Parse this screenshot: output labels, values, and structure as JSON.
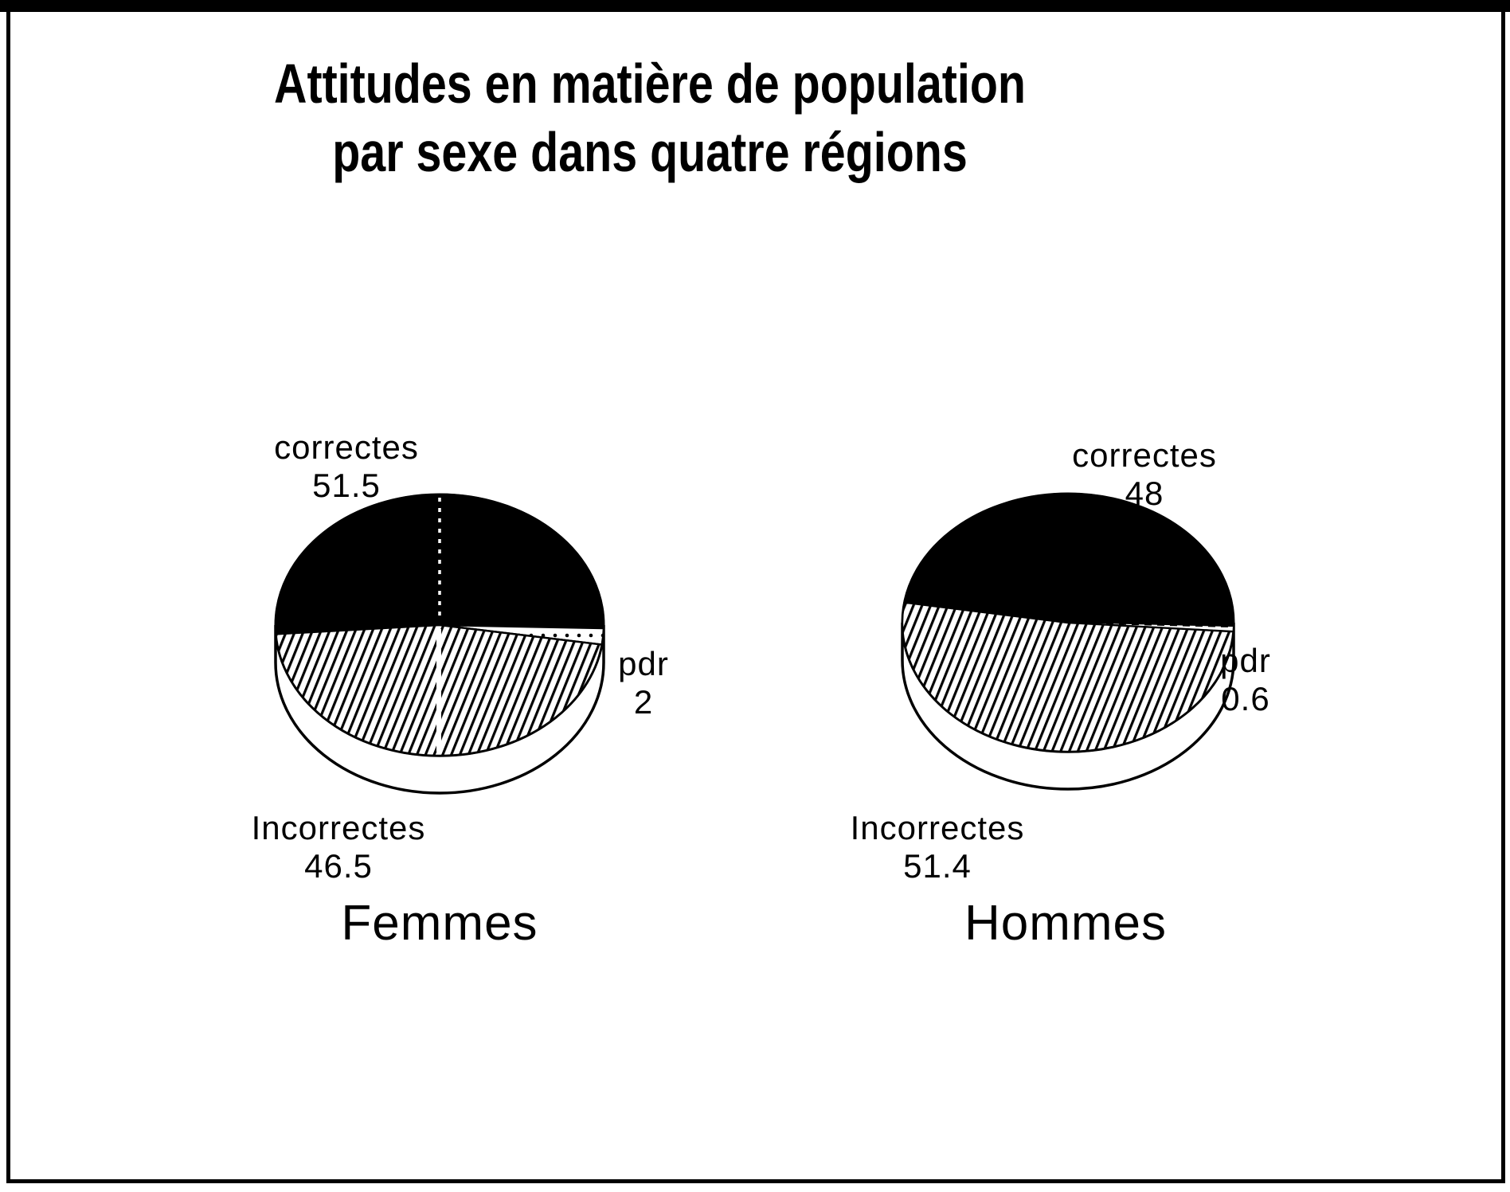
{
  "title": {
    "line1": "Attitudes en matière de population",
    "line2": "par sexe dans quatre régions"
  },
  "colors": {
    "ink": "#000000",
    "paper": "#ffffff"
  },
  "chart_data": [
    {
      "type": "pie",
      "group": "Femmes",
      "legend_position": "labels-around-pie",
      "slices": [
        {
          "label": "correctes",
          "value": 51.5,
          "display": "51.5",
          "texture": "solid-black"
        },
        {
          "label": "pdr",
          "value": 2,
          "display": "2",
          "texture": "dots"
        },
        {
          "label": "Incorrectes",
          "value": 46.5,
          "display": "46.5",
          "texture": "diagonal-hatch"
        }
      ]
    },
    {
      "type": "pie",
      "group": "Hommes",
      "legend_position": "labels-around-pie",
      "slices": [
        {
          "label": "correctes",
          "value": 48,
          "display": "48",
          "texture": "solid-black"
        },
        {
          "label": "pdr",
          "value": 0.6,
          "display": "0.6",
          "texture": "white-dashed"
        },
        {
          "label": "Incorrectes",
          "value": 51.4,
          "display": "51.4",
          "texture": "diagonal-hatch"
        }
      ]
    }
  ]
}
